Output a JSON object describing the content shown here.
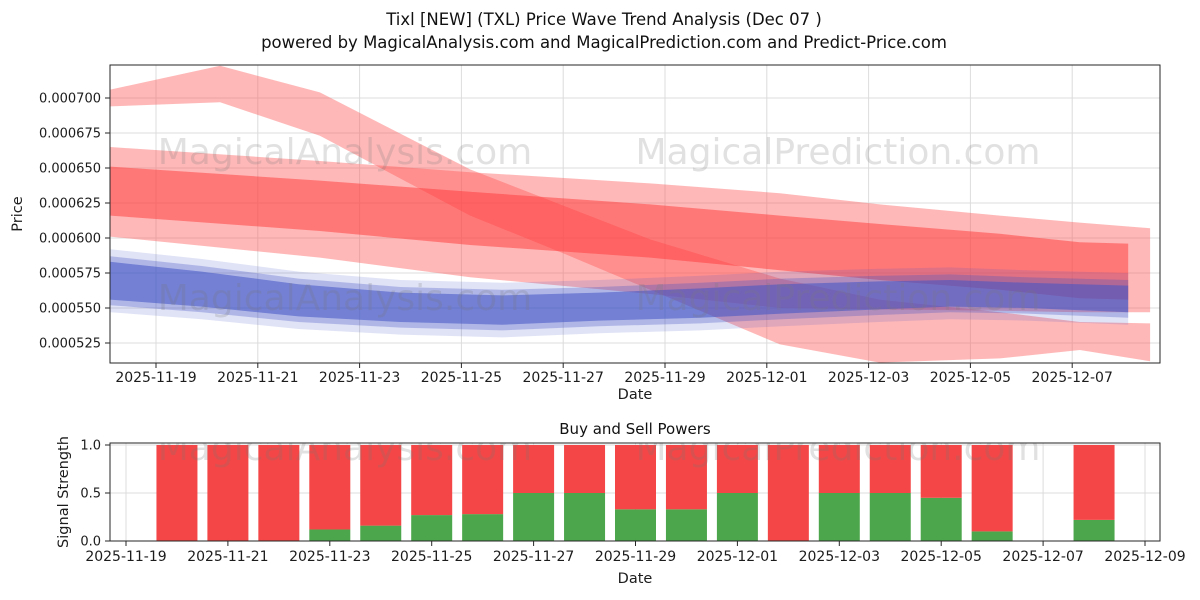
{
  "figure": {
    "title": "Tixl [NEW] (TXL) Price Wave Trend Analysis (Dec 07 )",
    "subtitle": "powered by MagicalAnalysis.com and MagicalPrediction.com and Predict-Price.com"
  },
  "watermarks": {
    "left_text": "MagicalAnalysis.com",
    "right_text": "MagicalPrediction.com"
  },
  "chart_data": [
    {
      "type": "area",
      "name": "price-wave-trend",
      "xlabel": "Date",
      "ylabel": "Price",
      "x_epoch": "2025-11-19",
      "x_tick_labels": [
        "2025-11-19",
        "2025-11-21",
        "2025-11-23",
        "2025-11-25",
        "2025-11-27",
        "2025-11-29",
        "2025-12-01",
        "2025-12-03",
        "2025-12-05",
        "2025-12-07"
      ],
      "y_tick_labels": [
        "0.000525",
        "0.000550",
        "0.000575",
        "0.000600",
        "0.000625",
        "0.000650",
        "0.000675",
        "0.000700"
      ],
      "ylim": [
        0.000511,
        0.000724
      ],
      "grid": true,
      "bands": [
        {
          "name": "upper-forecast-band",
          "color": "#ff5555",
          "opacity": 0.42,
          "points": [
            [
              -0.9,
              0.000706,
              0.000694
            ],
            [
              1.26,
              0.000723,
              0.000697
            ],
            [
              3.22,
              0.000704,
              0.000673
            ],
            [
              6.17,
              0.000649,
              0.000616
            ],
            [
              7.94,
              0.000624,
              0.00059
            ],
            [
              9.71,
              0.000599,
              0.000563
            ],
            [
              12.26,
              0.000571,
              0.000524
            ],
            [
              14.22,
              0.000556,
              0.000511
            ],
            [
              16.58,
              0.000547,
              0.000514
            ],
            [
              18.15,
              0.00054,
              0.00052
            ],
            [
              19.53,
              0.000539,
              0.000512
            ]
          ]
        },
        {
          "name": "outer-envelope-band",
          "color": "#ff5555",
          "opacity": 0.42,
          "points": [
            [
              -0.9,
              0.000665,
              0.000601
            ],
            [
              3.22,
              0.000655,
              0.000586
            ],
            [
              6.17,
              0.000647,
              0.000572
            ],
            [
              9.71,
              0.000639,
              0.00056
            ],
            [
              12.26,
              0.000632,
              0.00055
            ],
            [
              14.22,
              0.000624,
              0.000549
            ],
            [
              16.58,
              0.000616,
              0.000548
            ],
            [
              18.15,
              0.000611,
              0.000547
            ],
            [
              19.53,
              0.000607,
              0.000547
            ]
          ]
        },
        {
          "name": "inner-red-band",
          "color": "#ff3838",
          "opacity": 0.5,
          "points": [
            [
              -0.9,
              0.000651,
              0.000616
            ],
            [
              3.22,
              0.000641,
              0.000605
            ],
            [
              6.17,
              0.000633,
              0.000595
            ],
            [
              9.71,
              0.000624,
              0.000586
            ],
            [
              12.26,
              0.000616,
              0.000577
            ],
            [
              14.22,
              0.00061,
              0.00057
            ],
            [
              16.58,
              0.000603,
              0.000563
            ],
            [
              18.15,
              0.000597,
              0.000557
            ],
            [
              19.1,
              0.000596,
              0.000556
            ]
          ]
        },
        {
          "name": "blue-haze-band",
          "color": "#4153c5",
          "opacity": 0.16,
          "points": [
            [
              -0.9,
              0.000592,
              0.000547
            ],
            [
              0.9,
              0.000585,
              0.000542
            ],
            [
              2.8,
              0.000576,
              0.000535
            ],
            [
              4.8,
              0.00057,
              0.000531
            ],
            [
              6.8,
              0.000568,
              0.000529
            ],
            [
              8.7,
              0.00057,
              0.000532
            ],
            [
              10.7,
              0.000573,
              0.000534
            ],
            [
              12.3,
              0.000576,
              0.000537
            ],
            [
              14.2,
              0.000578,
              0.00054
            ],
            [
              15.6,
              0.000579,
              0.000542
            ],
            [
              17.1,
              0.000577,
              0.000541
            ],
            [
              19.1,
              0.000575,
              0.000538
            ]
          ]
        },
        {
          "name": "blue-mid-band",
          "color": "#4153c5",
          "opacity": 0.3,
          "points": [
            [
              -0.9,
              0.000587,
              0.000552
            ],
            [
              0.9,
              0.00058,
              0.000547
            ],
            [
              2.8,
              0.000571,
              0.00054
            ],
            [
              4.8,
              0.000565,
              0.000536
            ],
            [
              6.8,
              0.000563,
              0.000534
            ],
            [
              8.7,
              0.000565,
              0.000537
            ],
            [
              10.7,
              0.000568,
              0.000539
            ],
            [
              12.3,
              0.000571,
              0.000542
            ],
            [
              14.2,
              0.000573,
              0.000545
            ],
            [
              15.6,
              0.000574,
              0.000547
            ],
            [
              17.1,
              0.000572,
              0.000546
            ],
            [
              19.1,
              0.00057,
              0.000543
            ]
          ]
        },
        {
          "name": "blue-core-band",
          "color": "#4153c5",
          "opacity": 0.55,
          "points": [
            [
              -0.9,
              0.000583,
              0.000556
            ],
            [
              0.9,
              0.000576,
              0.000551
            ],
            [
              2.8,
              0.000567,
              0.000544
            ],
            [
              4.8,
              0.000561,
              0.00054
            ],
            [
              6.8,
              0.000559,
              0.000538
            ],
            [
              8.7,
              0.000561,
              0.000541
            ],
            [
              10.7,
              0.000564,
              0.000543
            ],
            [
              12.3,
              0.000567,
              0.000546
            ],
            [
              14.2,
              0.000569,
              0.000549
            ],
            [
              15.6,
              0.00057,
              0.000551
            ],
            [
              17.1,
              0.000568,
              0.00055
            ],
            [
              19.1,
              0.000566,
              0.000547
            ]
          ]
        }
      ]
    },
    {
      "type": "bar",
      "name": "buy-sell-powers",
      "title": "Buy and Sell Powers",
      "xlabel": "Date",
      "ylabel": "Signal Strength",
      "x_epoch": "2025-11-19",
      "x_tick_labels": [
        "2025-11-19",
        "2025-11-21",
        "2025-11-23",
        "2025-11-25",
        "2025-11-27",
        "2025-11-29",
        "2025-12-01",
        "2025-12-03",
        "2025-12-05",
        "2025-12-07",
        "2025-12-09"
      ],
      "y_tick_labels": [
        "0.0",
        "0.5",
        "1.0"
      ],
      "ylim": [
        0,
        1.02
      ],
      "series_colors": {
        "buy": "#4ca64c",
        "sell": "#f44646"
      },
      "bars": [
        {
          "date": "2025-11-20",
          "buy": 0.0,
          "sell": 1.0
        },
        {
          "date": "2025-11-21",
          "buy": 0.0,
          "sell": 1.0
        },
        {
          "date": "2025-11-22",
          "buy": 0.0,
          "sell": 1.0
        },
        {
          "date": "2025-11-23",
          "buy": 0.12,
          "sell": 0.88
        },
        {
          "date": "2025-11-24",
          "buy": 0.16,
          "sell": 0.84
        },
        {
          "date": "2025-11-25",
          "buy": 0.27,
          "sell": 0.73
        },
        {
          "date": "2025-11-26",
          "buy": 0.28,
          "sell": 0.72
        },
        {
          "date": "2025-11-27",
          "buy": 0.5,
          "sell": 0.5
        },
        {
          "date": "2025-11-28",
          "buy": 0.5,
          "sell": 0.5
        },
        {
          "date": "2025-11-29",
          "buy": 0.33,
          "sell": 0.67
        },
        {
          "date": "2025-11-30",
          "buy": 0.33,
          "sell": 0.67
        },
        {
          "date": "2025-12-01",
          "buy": 0.5,
          "sell": 0.5
        },
        {
          "date": "2025-12-02",
          "buy": 0.0,
          "sell": 1.0
        },
        {
          "date": "2025-12-03",
          "buy": 0.5,
          "sell": 0.5
        },
        {
          "date": "2025-12-04",
          "buy": 0.5,
          "sell": 0.5
        },
        {
          "date": "2025-12-05",
          "buy": 0.45,
          "sell": 0.55
        },
        {
          "date": "2025-12-06",
          "buy": 0.1,
          "sell": 0.9
        },
        {
          "date": "2025-12-08",
          "buy": 0.22,
          "sell": 0.78
        }
      ]
    }
  ]
}
